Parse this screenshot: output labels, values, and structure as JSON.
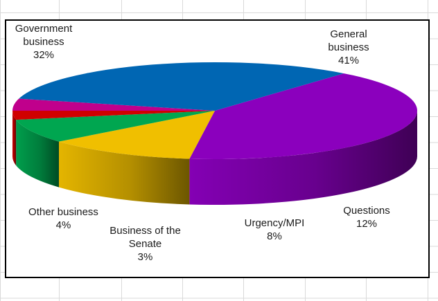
{
  "chart_data": {
    "type": "pie",
    "style": "3d",
    "categories": [
      "General business",
      "Questions",
      "Urgency/MPI",
      "Business of the Senate",
      "Other business",
      "Government business"
    ],
    "values": [
      41,
      12,
      8,
      3,
      4,
      32
    ],
    "value_labels": [
      "41%",
      "12%",
      "8%",
      "3%",
      "4%",
      "32%"
    ],
    "colors": [
      "#8b00bd",
      "#f0bf00",
      "#00a650",
      "#d00000",
      "#c0008c",
      "#0066b3"
    ],
    "title": "",
    "legend": "none"
  }
}
